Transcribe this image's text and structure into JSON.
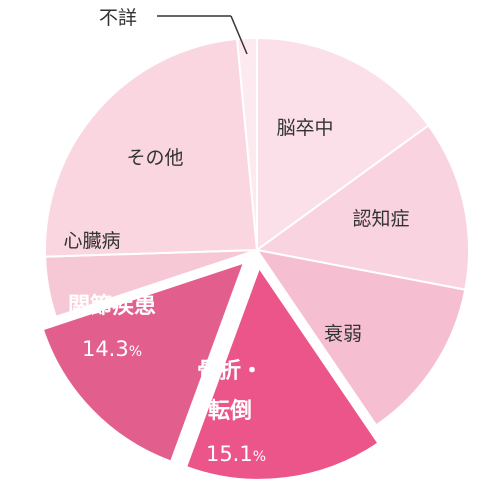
{
  "chart_data": {
    "type": "pie",
    "slices": [
      {
        "label": "脳卒中",
        "value": 15.0,
        "color": "#fbe0e9"
      },
      {
        "label": "認知症",
        "value": 13.0,
        "color": "#f9d3df"
      },
      {
        "label": "衰弱",
        "value": 12.5,
        "color": "#f6bfd1"
      },
      {
        "label": "骨折・転倒",
        "label_lines": [
          "骨折・",
          "転倒"
        ],
        "value": 15.1,
        "value_label": "15.1",
        "unit": "%",
        "color": "#ec5589",
        "emphasized": true
      },
      {
        "label": "関節疾患",
        "value": 14.3,
        "value_label": "14.3",
        "unit": "%",
        "color": "#e25e8c",
        "emphasized": true
      },
      {
        "label": "心臓病",
        "value": 4.6,
        "color": "#f6c8d6"
      },
      {
        "label": "その他",
        "value": 24.0,
        "color": "#f9d6e0"
      },
      {
        "label": "不詳",
        "value": 1.5,
        "color": "#fdeaf0"
      }
    ]
  }
}
